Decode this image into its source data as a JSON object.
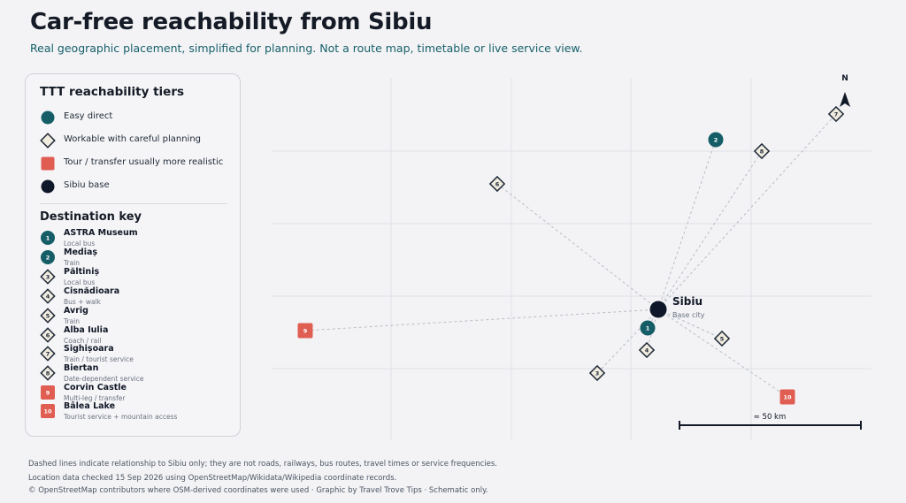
{
  "title": "Car-free reachability from Sibiu",
  "subtitle": "Real geographic placement, simplified for planning. Not a route map, timetable or live service view.",
  "legend": {
    "tiers_heading": "TTT reachability tiers",
    "tiers": [
      {
        "key": "easy",
        "label": "Easy direct",
        "color": "#155e68"
      },
      {
        "key": "workable",
        "label": "Workable with careful planning",
        "color": "#f1ece0"
      },
      {
        "key": "tour",
        "label": "Tour / transfer usually more realistic",
        "color": "#e05d52"
      },
      {
        "key": "base",
        "label": "Sibiu base",
        "color": "#0f172a"
      }
    ],
    "destinations_heading": "Destination key"
  },
  "destinations": [
    {
      "num": "1",
      "name": "ASTRA Museum",
      "mode": "Local bus",
      "tier": "easy"
    },
    {
      "num": "2",
      "name": "Mediaș",
      "mode": "Train",
      "tier": "easy"
    },
    {
      "num": "3",
      "name": "Păltiniș",
      "mode": "Local bus",
      "tier": "workable"
    },
    {
      "num": "4",
      "name": "Cisnădioara",
      "mode": "Bus + walk",
      "tier": "workable"
    },
    {
      "num": "5",
      "name": "Avrig",
      "mode": "Train",
      "tier": "workable"
    },
    {
      "num": "6",
      "name": "Alba Iulia",
      "mode": "Coach / rail",
      "tier": "workable"
    },
    {
      "num": "7",
      "name": "Sighișoara",
      "mode": "Train / tourist service",
      "tier": "workable"
    },
    {
      "num": "8",
      "name": "Biertan",
      "mode": "Date-dependent service",
      "tier": "workable"
    },
    {
      "num": "9",
      "name": "Corvin Castle",
      "mode": "Multi-leg / transfer",
      "tier": "tour"
    },
    {
      "num": "10",
      "name": "Bâlea Lake",
      "mode": "Tourist service + mountain access",
      "tier": "tour"
    }
  ],
  "base": {
    "name": "Sibiu",
    "sublabel": "Base city"
  },
  "north_label": "N",
  "scale_label": "≈ 50 km",
  "footer": [
    "Dashed lines indicate relationship to Sibiu only; they are not roads, railways, bus routes, travel times or service frequencies.",
    "Location data checked 15 Sep 2026 using OpenStreetMap/Wikidata/Wikipedia coordinate records.",
    "© OpenStreetMap contributors where OSM-derived coordinates were used · Graphic by Travel Trove Tips · Schematic only."
  ],
  "colors": {
    "easy": "#155e68",
    "workable_fill": "#f1ece0",
    "tour": "#e05d52",
    "base": "#0f172a",
    "line": "#b8bcc6",
    "grid": "#dfe1e6"
  }
}
